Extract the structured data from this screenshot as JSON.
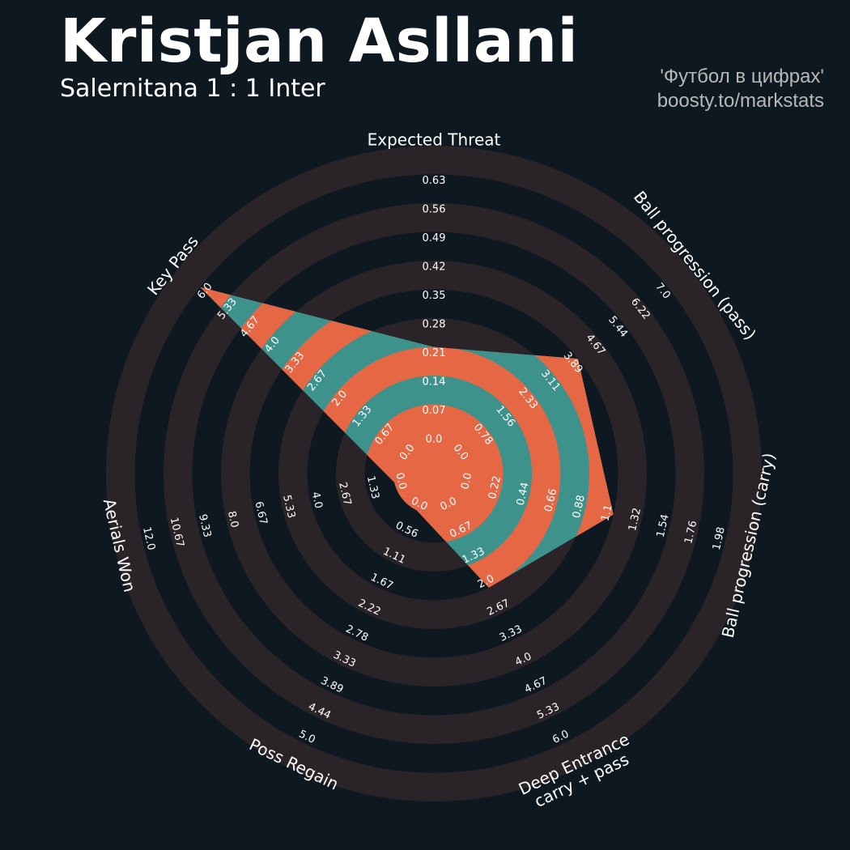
{
  "header": {
    "player_name": "Kristjan Asllani",
    "match": "Salernitana 1 : 1 Inter"
  },
  "credit": {
    "line1": "'Футбол в цифрах'",
    "line2": "boosty.to/markstats"
  },
  "colors": {
    "background": "#0e1820",
    "ring_band": "#2a2429",
    "fill_teal": "#3d938c",
    "fill_orange": "#e66743",
    "label_text": "#ffffff"
  },
  "chart_data": {
    "type": "radar",
    "title": "Kristjan Asllani",
    "subtitle": "Salernitana 1 : 1 Inter",
    "grid": true,
    "axes": [
      {
        "label": "Expected Threat",
        "min": 0.0,
        "max": 0.63,
        "value": 0.21,
        "ticks": [
          "0.0",
          "0.07",
          "0.14",
          "0.21",
          "0.28",
          "0.35",
          "0.42",
          "0.49",
          "0.56",
          "0.63"
        ]
      },
      {
        "label": "Ball progression (pass)",
        "min": 0.0,
        "max": 7.0,
        "value": 3.89,
        "ticks": [
          "0.0",
          "0.78",
          "1.56",
          "2.33",
          "3.11",
          "3.89",
          "4.67",
          "5.44",
          "6.22",
          "7.0"
        ]
      },
      {
        "label": "Ball progression (carry)",
        "min": 0.0,
        "max": 1.98,
        "value": 1.1,
        "ticks": [
          "0.0",
          "0.22",
          "0.44",
          "0.66",
          "0.88",
          "1.1",
          "1.32",
          "1.54",
          "1.76",
          "1.98"
        ]
      },
      {
        "label": "Deep Entrance\ncarry + pass",
        "min": 0.0,
        "max": 6.0,
        "value": 2.0,
        "ticks": [
          "0.0",
          "0.67",
          "1.33",
          "2.0",
          "2.67",
          "3.33",
          "4.0",
          "4.67",
          "5.33",
          "6.0"
        ]
      },
      {
        "label": "Poss Regain",
        "min": 0.0,
        "max": 5.0,
        "value": 0.0,
        "ticks": [
          "0.0",
          "0.56",
          "1.11",
          "1.67",
          "2.22",
          "2.78",
          "3.33",
          "3.89",
          "4.44",
          "5.0"
        ]
      },
      {
        "label": "Aerials Won",
        "min": 0.0,
        "max": 12.0,
        "value": 0.0,
        "ticks": [
          "0.0",
          "1.33",
          "2.67",
          "4.0",
          "5.33",
          "6.67",
          "8.0",
          "9.33",
          "10.67",
          "12.0"
        ]
      },
      {
        "label": "Key Pass",
        "min": 0.0,
        "max": 6.0,
        "value": 6.0,
        "ticks": [
          "0.0",
          "0.67",
          "1.33",
          "2.0",
          "2.67",
          "3.33",
          "4.0",
          "4.67",
          "5.33",
          "6.0"
        ]
      }
    ]
  }
}
